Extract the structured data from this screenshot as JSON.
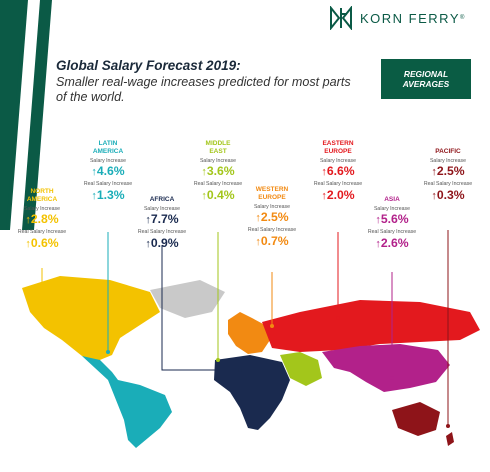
{
  "brand": {
    "name": "KORN FERRY",
    "tm": "®",
    "color": "#0b5a46"
  },
  "title": "Global Salary Forecast 2019:",
  "subtitle": "Smaller real-wage increases predicted for most parts of the world.",
  "badge": {
    "line1": "REGIONAL",
    "line2": "AVERAGES",
    "color": "#0a5c44"
  },
  "labels": {
    "salary": "Salary Increase",
    "real": "Real Salary Increase"
  },
  "regions": [
    {
      "key": "north-america",
      "name1": "NORTH",
      "name2": "AMERICA",
      "salary": "2.8%",
      "real": "0.6%",
      "color": "#f3c200"
    },
    {
      "key": "latin-america",
      "name1": "LATIN",
      "name2": "AMERICA",
      "salary": "4.6%",
      "real": "1.3%",
      "color": "#1aadb8"
    },
    {
      "key": "africa",
      "name1": "AFRICA",
      "name2": "",
      "salary": "7.7%",
      "real": "0.9%",
      "color": "#1a2a4f"
    },
    {
      "key": "middle-east",
      "name1": "MIDDLE",
      "name2": "EAST",
      "salary": "3.6%",
      "real": "0.4%",
      "color": "#a3c61b"
    },
    {
      "key": "western-europe",
      "name1": "WESTERN",
      "name2": "EUROPE",
      "salary": "2.5%",
      "real": "0.7%",
      "color": "#f28a12"
    },
    {
      "key": "eastern-europe",
      "name1": "EASTERN",
      "name2": "EUROPE",
      "salary": "6.6%",
      "real": "2.0%",
      "color": "#e3191e"
    },
    {
      "key": "asia",
      "name1": "ASIA",
      "name2": "",
      "salary": "5.6%",
      "real": "2.6%",
      "color": "#b2218a"
    },
    {
      "key": "pacific",
      "name1": "PACIFIC",
      "name2": "",
      "salary": "2.5%",
      "real": "0.3%",
      "color": "#8e1419"
    }
  ]
}
